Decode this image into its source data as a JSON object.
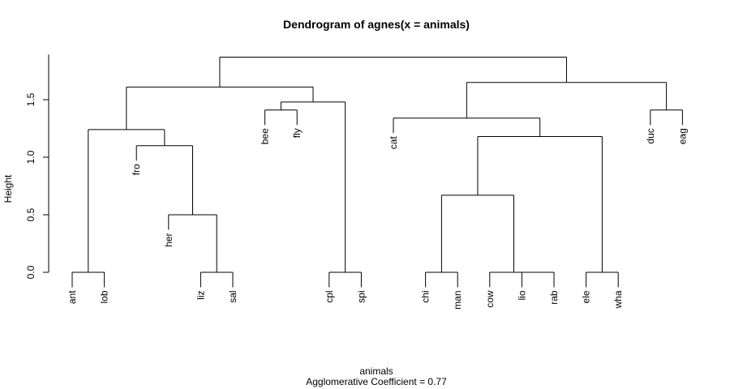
{
  "chart_data": {
    "type": "dendrogram",
    "title": "Dendrogram of  agnes(x = animals)",
    "xlabel": "animals",
    "ylabel": "Height",
    "subtitle": "Agglomerative Coefficient =  0.77",
    "ylim": [
      0,
      1.9
    ],
    "y_ticks": [
      "0.0",
      "0.5",
      "1.0",
      "1.5"
    ],
    "leaves": [
      "ant",
      "lob",
      "fro",
      "her",
      "liz",
      "sal",
      "bee",
      "fly",
      "cpl",
      "spi",
      "cat",
      "chi",
      "man",
      "cow",
      "lio",
      "rab",
      "ele",
      "wha",
      "duc",
      "eag"
    ],
    "merges": [
      {
        "left": "ant",
        "right": "lob",
        "height": 0.0
      },
      {
        "left": "liz",
        "right": "sal",
        "height": 0.0
      },
      {
        "left": "cpl",
        "right": "spi",
        "height": 0.0
      },
      {
        "left": "chi",
        "right": "man",
        "height": 0.0
      },
      {
        "left": "lio",
        "right": "rab",
        "height": 0.0
      },
      {
        "left": "cow",
        "right": "lio+rab",
        "height": 0.0
      },
      {
        "left": "ele",
        "right": "wha",
        "height": 0.0
      },
      {
        "left": "her",
        "right": "liz+sal",
        "height": 0.5
      },
      {
        "left": "chi+man",
        "right": "cow+lio+rab",
        "height": 0.67
      },
      {
        "left": "fro",
        "right": "her+liz+sal",
        "height": 1.1
      },
      {
        "left": "chi..rab",
        "right": "ele+wha",
        "height": 1.18
      },
      {
        "left": "ant+lob",
        "right": "fro..sal",
        "height": 1.24
      },
      {
        "left": "cat",
        "right": "chi..wha",
        "height": 1.34
      },
      {
        "left": "bee",
        "right": "fly",
        "height": 1.41
      },
      {
        "left": "duc",
        "right": "eag",
        "height": 1.41
      },
      {
        "left": "bee+fly",
        "right": "cpl+spi",
        "height": 1.48
      },
      {
        "left": "ant..sal",
        "right": "bee..spi",
        "height": 1.61
      },
      {
        "left": "cat..wha",
        "right": "duc+eag",
        "height": 1.65
      },
      {
        "left": "ant..spi",
        "right": "cat..eag",
        "height": 1.87
      }
    ]
  }
}
